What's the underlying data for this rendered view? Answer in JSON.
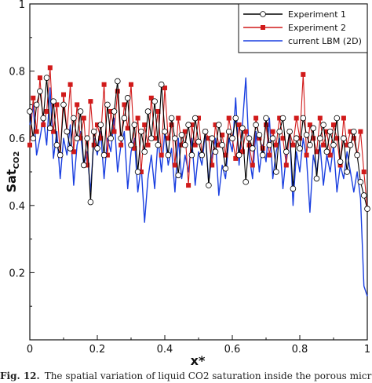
{
  "chart_data": {
    "type": "line",
    "xlabel": "x*",
    "ylabel": "Sat",
    "ylabel_sub": "CO2",
    "xlim": [
      0,
      1
    ],
    "ylim": [
      0,
      1
    ],
    "x_ticks": [
      "0",
      "0.2",
      "0.4",
      "0.6",
      "0.8",
      "1"
    ],
    "y_ticks": [
      "0.2",
      "0.4",
      "0.6",
      "0.8",
      "1"
    ],
    "grid": false,
    "legend_position": "top-right",
    "series": [
      {
        "name": "Experiment 1",
        "color": "#000000",
        "marker": "open-circle",
        "x": [
          0.0,
          0.01,
          0.02,
          0.03,
          0.04,
          0.05,
          0.06,
          0.07,
          0.08,
          0.09,
          0.1,
          0.11,
          0.12,
          0.13,
          0.14,
          0.15,
          0.16,
          0.17,
          0.18,
          0.19,
          0.2,
          0.21,
          0.22,
          0.23,
          0.24,
          0.25,
          0.26,
          0.27,
          0.28,
          0.29,
          0.3,
          0.31,
          0.32,
          0.33,
          0.34,
          0.35,
          0.36,
          0.37,
          0.38,
          0.39,
          0.4,
          0.41,
          0.42,
          0.43,
          0.44,
          0.45,
          0.46,
          0.47,
          0.48,
          0.49,
          0.5,
          0.51,
          0.52,
          0.53,
          0.54,
          0.55,
          0.56,
          0.57,
          0.58,
          0.59,
          0.6,
          0.61,
          0.62,
          0.63,
          0.64,
          0.65,
          0.66,
          0.67,
          0.68,
          0.69,
          0.7,
          0.71,
          0.72,
          0.73,
          0.74,
          0.75,
          0.76,
          0.77,
          0.78,
          0.79,
          0.8,
          0.81,
          0.82,
          0.83,
          0.84,
          0.85,
          0.86,
          0.87,
          0.88,
          0.89,
          0.9,
          0.91,
          0.92,
          0.93,
          0.94,
          0.95,
          0.96,
          0.97,
          0.98,
          0.99,
          1.0
        ],
        "y": [
          0.68,
          0.6,
          0.7,
          0.74,
          0.66,
          0.78,
          0.63,
          0.71,
          0.58,
          0.55,
          0.7,
          0.62,
          0.57,
          0.66,
          0.6,
          0.68,
          0.52,
          0.6,
          0.41,
          0.62,
          0.57,
          0.64,
          0.55,
          0.7,
          0.6,
          0.68,
          0.77,
          0.6,
          0.66,
          0.72,
          0.58,
          0.64,
          0.5,
          0.62,
          0.56,
          0.68,
          0.6,
          0.71,
          0.58,
          0.76,
          0.62,
          0.55,
          0.66,
          0.6,
          0.49,
          0.61,
          0.58,
          0.64,
          0.55,
          0.66,
          0.59,
          0.55,
          0.62,
          0.46,
          0.6,
          0.56,
          0.64,
          0.58,
          0.51,
          0.62,
          0.6,
          0.66,
          0.55,
          0.63,
          0.47,
          0.6,
          0.57,
          0.64,
          0.61,
          0.55,
          0.66,
          0.58,
          0.6,
          0.5,
          0.62,
          0.66,
          0.56,
          0.62,
          0.45,
          0.6,
          0.57,
          0.66,
          0.61,
          0.58,
          0.63,
          0.48,
          0.6,
          0.64,
          0.56,
          0.62,
          0.58,
          0.66,
          0.53,
          0.6,
          0.5,
          0.58,
          0.62,
          0.55,
          0.47,
          0.43,
          0.39
        ]
      },
      {
        "name": "Experiment 2",
        "color": "#d11a1a",
        "marker": "filled-square",
        "x": [
          0.0,
          0.01,
          0.02,
          0.03,
          0.04,
          0.05,
          0.06,
          0.07,
          0.08,
          0.09,
          0.1,
          0.11,
          0.12,
          0.13,
          0.14,
          0.15,
          0.16,
          0.17,
          0.18,
          0.19,
          0.2,
          0.21,
          0.22,
          0.23,
          0.24,
          0.25,
          0.26,
          0.27,
          0.28,
          0.29,
          0.3,
          0.31,
          0.32,
          0.33,
          0.34,
          0.35,
          0.36,
          0.37,
          0.38,
          0.39,
          0.4,
          0.41,
          0.42,
          0.43,
          0.44,
          0.45,
          0.46,
          0.47,
          0.48,
          0.49,
          0.5,
          0.51,
          0.52,
          0.53,
          0.54,
          0.55,
          0.56,
          0.57,
          0.58,
          0.59,
          0.6,
          0.61,
          0.62,
          0.63,
          0.64,
          0.65,
          0.66,
          0.67,
          0.68,
          0.69,
          0.7,
          0.71,
          0.72,
          0.73,
          0.74,
          0.75,
          0.76,
          0.77,
          0.78,
          0.79,
          0.8,
          0.81,
          0.82,
          0.83,
          0.84,
          0.85,
          0.86,
          0.87,
          0.88,
          0.89,
          0.9,
          0.91,
          0.92,
          0.93,
          0.94,
          0.95,
          0.96,
          0.97,
          0.98,
          0.99,
          1.0
        ],
        "y": [
          0.58,
          0.72,
          0.62,
          0.78,
          0.64,
          0.68,
          0.81,
          0.62,
          0.7,
          0.55,
          0.73,
          0.62,
          0.76,
          0.56,
          0.7,
          0.6,
          0.66,
          0.52,
          0.71,
          0.58,
          0.64,
          0.6,
          0.76,
          0.55,
          0.68,
          0.62,
          0.74,
          0.58,
          0.7,
          0.63,
          0.76,
          0.57,
          0.66,
          0.5,
          0.64,
          0.58,
          0.72,
          0.6,
          0.68,
          0.55,
          0.75,
          0.6,
          0.64,
          0.52,
          0.66,
          0.58,
          0.62,
          0.46,
          0.64,
          0.58,
          0.66,
          0.55,
          0.62,
          0.6,
          0.52,
          0.64,
          0.58,
          0.61,
          0.55,
          0.66,
          0.6,
          0.54,
          0.64,
          0.56,
          0.62,
          0.58,
          0.52,
          0.66,
          0.6,
          0.57,
          0.64,
          0.55,
          0.62,
          0.58,
          0.66,
          0.6,
          0.52,
          0.62,
          0.58,
          0.66,
          0.6,
          0.79,
          0.55,
          0.64,
          0.6,
          0.56,
          0.66,
          0.58,
          0.62,
          0.55,
          0.64,
          0.6,
          0.52,
          0.66,
          0.58,
          0.62,
          0.6,
          0.55,
          0.62,
          0.5,
          0.39
        ]
      },
      {
        "name": "current LBM (2D)",
        "color": "#1a3fe0",
        "marker": "none",
        "x": [
          0.0,
          0.01,
          0.02,
          0.03,
          0.04,
          0.05,
          0.06,
          0.07,
          0.08,
          0.09,
          0.1,
          0.11,
          0.12,
          0.13,
          0.14,
          0.15,
          0.16,
          0.17,
          0.18,
          0.19,
          0.2,
          0.21,
          0.22,
          0.23,
          0.24,
          0.25,
          0.26,
          0.27,
          0.28,
          0.29,
          0.3,
          0.31,
          0.32,
          0.33,
          0.34,
          0.35,
          0.36,
          0.37,
          0.38,
          0.39,
          0.4,
          0.41,
          0.42,
          0.43,
          0.44,
          0.45,
          0.46,
          0.47,
          0.48,
          0.49,
          0.5,
          0.51,
          0.52,
          0.53,
          0.54,
          0.55,
          0.56,
          0.57,
          0.58,
          0.59,
          0.6,
          0.61,
          0.62,
          0.63,
          0.64,
          0.65,
          0.66,
          0.67,
          0.68,
          0.69,
          0.7,
          0.71,
          0.72,
          0.73,
          0.74,
          0.75,
          0.76,
          0.77,
          0.78,
          0.79,
          0.8,
          0.81,
          0.82,
          0.83,
          0.84,
          0.85,
          0.86,
          0.87,
          0.88,
          0.89,
          0.9,
          0.91,
          0.92,
          0.93,
          0.94,
          0.95,
          0.96,
          0.97,
          0.98,
          0.99,
          1.0
        ],
        "y": [
          0.64,
          0.7,
          0.55,
          0.6,
          0.66,
          0.58,
          0.75,
          0.54,
          0.62,
          0.48,
          0.6,
          0.55,
          0.64,
          0.46,
          0.58,
          0.62,
          0.52,
          0.56,
          0.44,
          0.6,
          0.55,
          0.62,
          0.48,
          0.6,
          0.56,
          0.66,
          0.5,
          0.58,
          0.62,
          0.45,
          0.56,
          0.6,
          0.44,
          0.52,
          0.35,
          0.48,
          0.55,
          0.45,
          0.6,
          0.5,
          0.62,
          0.52,
          0.57,
          0.44,
          0.6,
          0.48,
          0.55,
          0.5,
          0.6,
          0.46,
          0.56,
          0.52,
          0.62,
          0.47,
          0.55,
          0.6,
          0.43,
          0.52,
          0.48,
          0.6,
          0.56,
          0.72,
          0.52,
          0.64,
          0.78,
          0.55,
          0.48,
          0.62,
          0.5,
          0.58,
          0.53,
          0.66,
          0.48,
          0.56,
          0.6,
          0.45,
          0.55,
          0.62,
          0.4,
          0.56,
          0.5,
          0.6,
          0.54,
          0.38,
          0.55,
          0.5,
          0.58,
          0.46,
          0.55,
          0.5,
          0.58,
          0.44,
          0.52,
          0.48,
          0.56,
          0.5,
          0.44,
          0.5,
          0.42,
          0.16,
          0.13
        ]
      }
    ]
  },
  "caption": {
    "lead": "Fig. 12.",
    "text": "The spatial variation of liquid CO2 saturation inside the porous micromodel"
  }
}
